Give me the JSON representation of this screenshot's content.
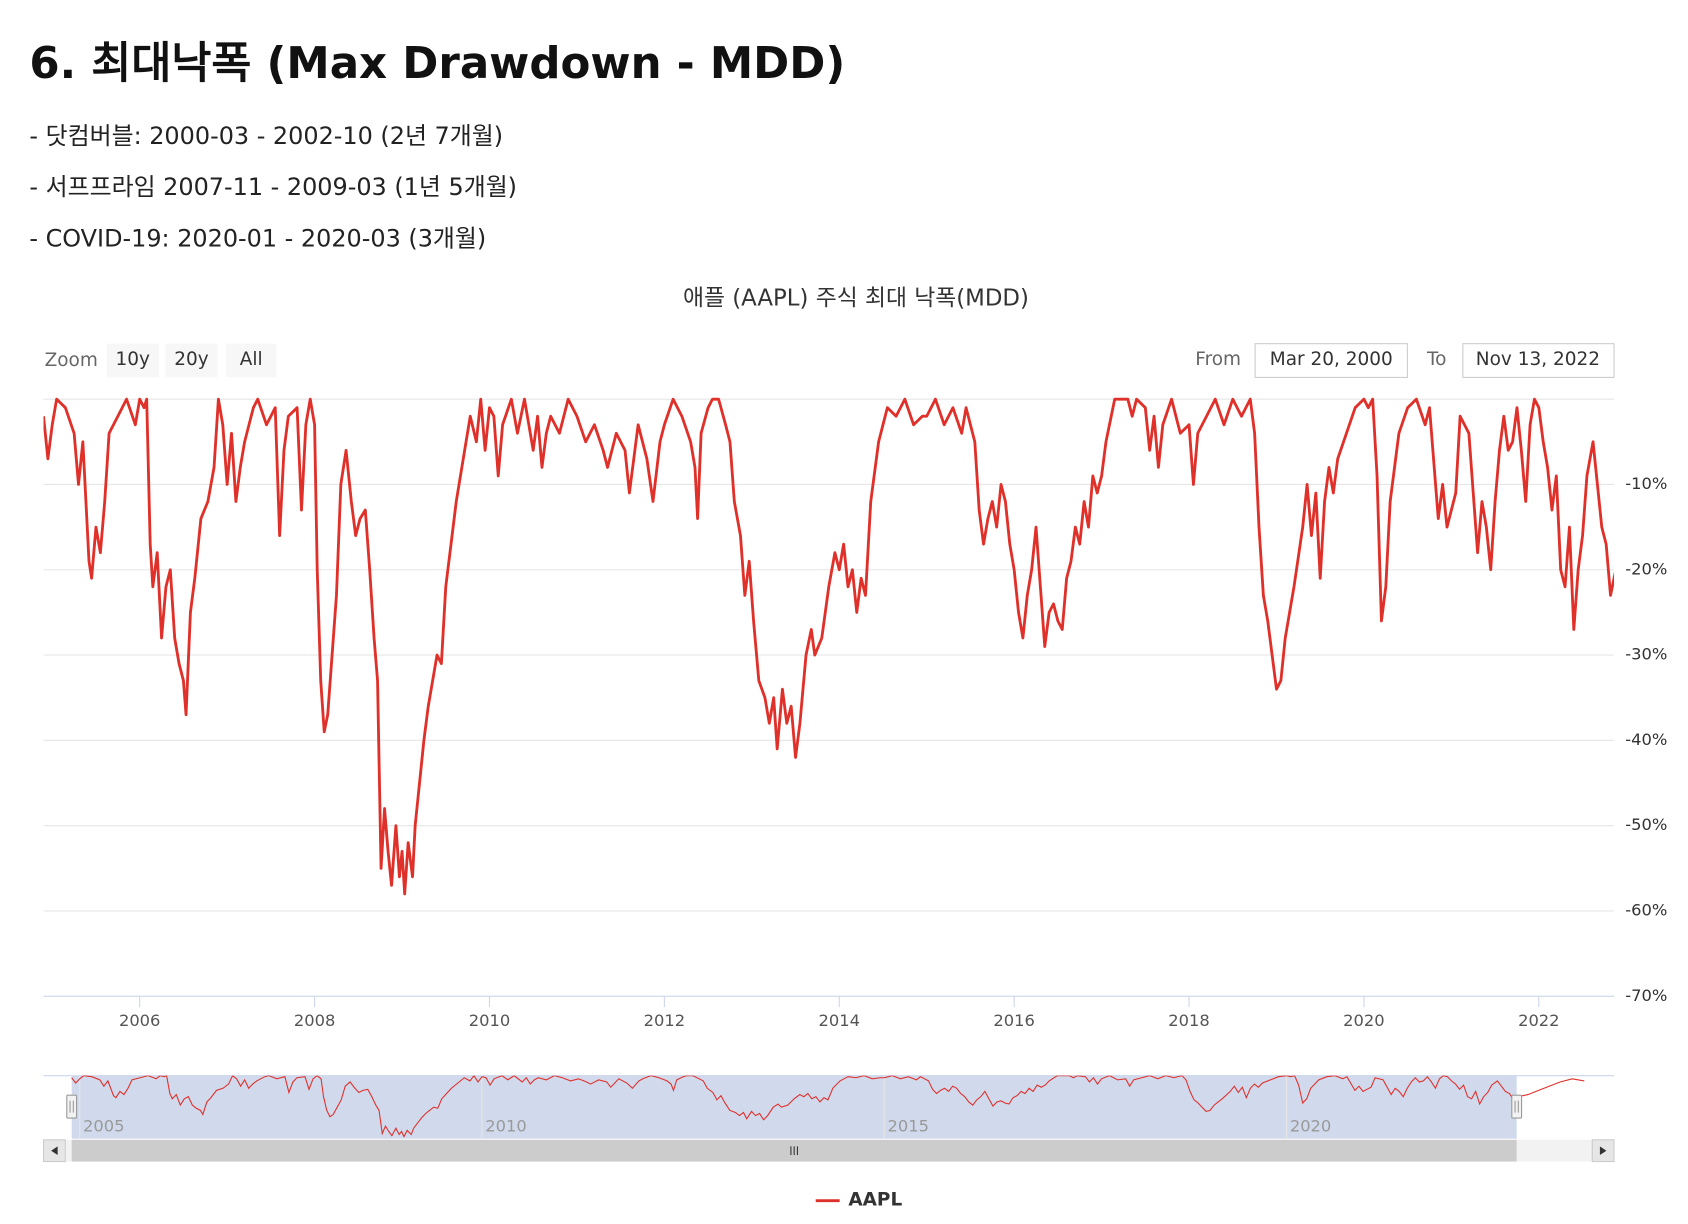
{
  "heading": "6. 최대낙폭 (Max Drawdown - MDD)",
  "bullets": [
    "- 닷컴버블: 2000-03 - 2002-10 (2년 7개월)",
    "- 서프프라임 2007-11 - 2009-03 (1년 5개월)",
    "- COVID-19: 2020-01 - 2020-03 (3개월)"
  ],
  "chart_data": {
    "type": "line",
    "title": "애플 (AAPL) 주식 최대 낙폭(MDD)",
    "zoom": {
      "label": "Zoom",
      "buttons": [
        "10y",
        "20y",
        "All"
      ]
    },
    "range": {
      "from_label": "From",
      "from": "Mar 20, 2000",
      "to_label": "To",
      "to": "Nov 13, 2022"
    },
    "x": [
      2004.9,
      2004.95,
      2005.0,
      2005.05,
      2005.15,
      2005.25,
      2005.3,
      2005.35,
      2005.42,
      2005.45,
      2005.5,
      2005.55,
      2005.6,
      2005.65,
      2005.75,
      2005.85,
      2005.95,
      2006.0,
      2006.05,
      2006.08,
      2006.12,
      2006.15,
      2006.2,
      2006.25,
      2006.3,
      2006.35,
      2006.4,
      2006.45,
      2006.5,
      2006.53,
      2006.58,
      2006.63,
      2006.7,
      2006.78,
      2006.85,
      2006.9,
      2006.95,
      2007.0,
      2007.05,
      2007.1,
      2007.15,
      2007.2,
      2007.3,
      2007.35,
      2007.45,
      2007.55,
      2007.6,
      2007.65,
      2007.7,
      2007.8,
      2007.85,
      2007.9,
      2007.95,
      2008.0,
      2008.03,
      2008.07,
      2008.11,
      2008.15,
      2008.2,
      2008.25,
      2008.3,
      2008.36,
      2008.42,
      2008.47,
      2008.52,
      2008.58,
      2008.63,
      2008.68,
      2008.72,
      2008.76,
      2008.8,
      2008.84,
      2008.88,
      2008.93,
      2008.97,
      2009.0,
      2009.03,
      2009.07,
      2009.12,
      2009.15,
      2009.2,
      2009.25,
      2009.3,
      2009.35,
      2009.4,
      2009.45,
      2009.5,
      2009.56,
      2009.62,
      2009.7,
      2009.78,
      2009.85,
      2009.9,
      2009.95,
      2010.0,
      2010.05,
      2010.1,
      2010.15,
      2010.25,
      2010.32,
      2010.4,
      2010.5,
      2010.55,
      2010.6,
      2010.65,
      2010.7,
      2010.8,
      2010.9,
      2011.0,
      2011.1,
      2011.2,
      2011.3,
      2011.35,
      2011.45,
      2011.55,
      2011.6,
      2011.7,
      2011.8,
      2011.87,
      2011.95,
      2012.0,
      2012.1,
      2012.2,
      2012.3,
      2012.35,
      2012.38,
      2012.42,
      2012.5,
      2012.55,
      2012.62,
      2012.7,
      2012.75,
      2012.8,
      2012.87,
      2012.92,
      2012.97,
      2013.02,
      2013.08,
      2013.15,
      2013.2,
      2013.25,
      2013.29,
      2013.35,
      2013.4,
      2013.45,
      2013.5,
      2013.55,
      2013.62,
      2013.68,
      2013.72,
      2013.8,
      2013.88,
      2013.95,
      2014.0,
      2014.05,
      2014.1,
      2014.15,
      2014.2,
      2014.25,
      2014.3,
      2014.36,
      2014.45,
      2014.5,
      2014.55,
      2014.65,
      2014.75,
      2014.85,
      2014.95,
      2015.0,
      2015.1,
      2015.2,
      2015.3,
      2015.4,
      2015.45,
      2015.55,
      2015.6,
      2015.65,
      2015.7,
      2015.75,
      2015.8,
      2015.85,
      2015.9,
      2015.95,
      2016.0,
      2016.05,
      2016.1,
      2016.15,
      2016.2,
      2016.25,
      2016.3,
      2016.35,
      2016.4,
      2016.45,
      2016.5,
      2016.55,
      2016.6,
      2016.65,
      2016.7,
      2016.75,
      2016.8,
      2016.85,
      2016.9,
      2016.95,
      2017.0,
      2017.05,
      2017.15,
      2017.3,
      2017.35,
      2017.4,
      2017.5,
      2017.55,
      2017.6,
      2017.65,
      2017.7,
      2017.8,
      2017.9,
      2018.0,
      2018.05,
      2018.1,
      2018.2,
      2018.3,
      2018.4,
      2018.5,
      2018.6,
      2018.7,
      2018.75,
      2018.8,
      2018.85,
      2018.9,
      2018.95,
      2019.0,
      2019.05,
      2019.1,
      2019.15,
      2019.2,
      2019.3,
      2019.35,
      2019.4,
      2019.45,
      2019.5,
      2019.55,
      2019.6,
      2019.65,
      2019.7,
      2019.8,
      2019.9,
      2020.0,
      2020.05,
      2020.1,
      2020.15,
      2020.2,
      2020.25,
      2020.3,
      2020.4,
      2020.5,
      2020.6,
      2020.7,
      2020.75,
      2020.85,
      2020.9,
      2020.95,
      2021.0,
      2021.05,
      2021.1,
      2021.2,
      2021.3,
      2021.35,
      2021.4,
      2021.45,
      2021.5,
      2021.55,
      2021.6,
      2021.65,
      2021.7,
      2021.75,
      2021.8,
      2021.85,
      2021.9,
      2021.95,
      2022.0,
      2022.05,
      2022.1,
      2022.15,
      2022.2,
      2022.25,
      2022.3,
      2022.35,
      2022.4,
      2022.45,
      2022.5,
      2022.55,
      2022.62,
      2022.67,
      2022.72,
      2022.77,
      2022.82,
      2022.88,
      2023.0,
      2023.2,
      2023.4,
      2023.55,
      2023.7
    ],
    "series": [
      {
        "name": "AAPL",
        "color": "#e0302a",
        "values": [
          -2,
          -7,
          -3,
          0,
          -1,
          -4,
          -10,
          -5,
          -19,
          -21,
          -15,
          -18,
          -12,
          -4,
          -2,
          0,
          -3,
          0,
          -1,
          0,
          -17,
          -22,
          -18,
          -28,
          -22,
          -20,
          -28,
          -31,
          -33,
          -37,
          -25,
          -21,
          -14,
          -12,
          -8,
          0,
          -3,
          -10,
          -4,
          -12,
          -8,
          -5,
          -1,
          0,
          -3,
          -1,
          -16,
          -6,
          -2,
          -1,
          -13,
          -3,
          0,
          -3,
          -20,
          -33,
          -39,
          -37,
          -30,
          -23,
          -10,
          -6,
          -12,
          -16,
          -14,
          -13,
          -20,
          -28,
          -33,
          -55,
          -48,
          -53,
          -57,
          -50,
          -56,
          -53,
          -58,
          -52,
          -56,
          -50,
          -45,
          -40,
          -36,
          -33,
          -30,
          -31,
          -22,
          -17,
          -12,
          -7,
          -2,
          -5,
          0,
          -6,
          -1,
          -2,
          -9,
          -3,
          0,
          -4,
          0,
          -6,
          -2,
          -8,
          -4,
          -2,
          -4,
          0,
          -2,
          -5,
          -3,
          -6,
          -8,
          -4,
          -6,
          -11,
          -3,
          -7,
          -12,
          -5,
          -3,
          0,
          -2,
          -5,
          -8,
          -14,
          -4,
          -1,
          0,
          0,
          -3,
          -5,
          -12,
          -16,
          -23,
          -19,
          -26,
          -33,
          -35,
          -38,
          -35,
          -41,
          -34,
          -38,
          -36,
          -42,
          -38,
          -30,
          -27,
          -30,
          -28,
          -22,
          -18,
          -20,
          -17,
          -22,
          -20,
          -25,
          -21,
          -23,
          -12,
          -5,
          -3,
          -1,
          -2,
          0,
          -3,
          -2,
          -2,
          0,
          -3,
          -1,
          -4,
          -1,
          -5,
          -13,
          -17,
          -14,
          -12,
          -15,
          -10,
          -12,
          -17,
          -20,
          -25,
          -28,
          -23,
          -20,
          -15,
          -22,
          -29,
          -25,
          -24,
          -26,
          -27,
          -21,
          -19,
          -15,
          -17,
          -12,
          -15,
          -9,
          -11,
          -9,
          -5,
          0,
          0,
          -2,
          0,
          -1,
          -6,
          -2,
          -8,
          -3,
          0,
          -4,
          -3,
          -10,
          -4,
          -2,
          0,
          -3,
          0,
          -2,
          0,
          -4,
          -15,
          -23,
          -26,
          -30,
          -34,
          -33,
          -28,
          -25,
          -22,
          -15,
          -10,
          -16,
          -11,
          -21,
          -12,
          -8,
          -11,
          -7,
          -4,
          -1,
          0,
          -1,
          0,
          -9,
          -26,
          -22,
          -12,
          -4,
          -1,
          0,
          -3,
          -1,
          -14,
          -10,
          -15,
          -13,
          -11,
          -2,
          -4,
          -18,
          -12,
          -15,
          -20,
          -12,
          -6,
          -2,
          -6,
          -5,
          -1,
          -6,
          -12,
          -3,
          0,
          -1,
          -5,
          -8,
          -13,
          -9,
          -20,
          -22,
          -15,
          -27,
          -20,
          -16,
          -9,
          -5,
          -10,
          -15,
          -17,
          -23,
          -20,
          -18,
          -12,
          -6,
          -3,
          -5
        ]
      }
    ],
    "xlim": [
      2004.9,
      2022.86
    ],
    "xticks": [
      2006,
      2008,
      2010,
      2012,
      2014,
      2016,
      2018,
      2020,
      2022
    ],
    "ylim": [
      -70,
      0
    ],
    "yticks": [
      {
        "value": -10,
        "label": "-10%"
      },
      {
        "value": -20,
        "label": "-20%"
      },
      {
        "value": -30,
        "label": "-30%"
      },
      {
        "value": -40,
        "label": "-40%"
      },
      {
        "value": -50,
        "label": "-50%"
      },
      {
        "value": -60,
        "label": "-60%"
      },
      {
        "value": -70,
        "label": "-70%"
      }
    ],
    "grid": true,
    "legend": "bottom",
    "navigator": {
      "xlim": [
        2004.55,
        2024.07
      ],
      "xticks": [
        2005,
        2010,
        2015,
        2020
      ],
      "ylim": [
        -60,
        0
      ]
    }
  }
}
